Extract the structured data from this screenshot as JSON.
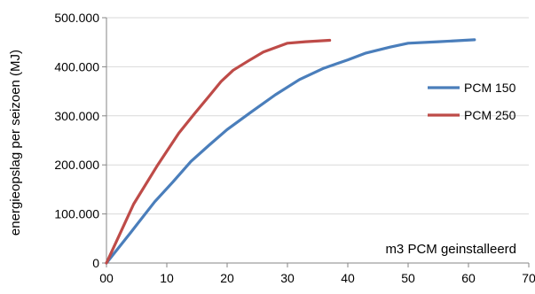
{
  "chart_data": {
    "type": "line",
    "title": "",
    "xlabel": "m3 PCM geinstalleerd",
    "ylabel": "energieopslag per seizoen (MJ)",
    "xlim": [
      0,
      70
    ],
    "ylim": [
      0,
      500000
    ],
    "x_ticks": [
      0,
      10,
      20,
      30,
      40,
      50,
      60,
      70
    ],
    "x_tick_labels": [
      "00",
      "10",
      "20",
      "30",
      "40",
      "50",
      "60",
      "70"
    ],
    "y_ticks": [
      0,
      100000,
      200000,
      300000,
      400000,
      500000
    ],
    "y_tick_labels": [
      "0",
      "100.000",
      "200.000",
      "300.000",
      "400.000",
      "500.000"
    ],
    "grid": "horizontal",
    "legend": "right",
    "series": [
      {
        "name": "PCM 150",
        "color": "#4a7ebb",
        "x": [
          0,
          4,
          8,
          11,
          14,
          17,
          20,
          24,
          28,
          32,
          36,
          40,
          43,
          47,
          50,
          55,
          61
        ],
        "y": [
          0,
          62000,
          125000,
          165000,
          207000,
          240000,
          272000,
          308000,
          343000,
          374000,
          397000,
          414000,
          428000,
          440000,
          448000,
          451000,
          455000
        ]
      },
      {
        "name": "PCM 250",
        "color": "#be4b48",
        "x": [
          0,
          4.5,
          8.5,
          12,
          14.5,
          17,
          19,
          21,
          23.5,
          26,
          30,
          33,
          37
        ],
        "y": [
          0,
          120000,
          200000,
          265000,
          303000,
          340000,
          370000,
          393000,
          412000,
          430000,
          448000,
          451000,
          454000
        ]
      }
    ]
  }
}
